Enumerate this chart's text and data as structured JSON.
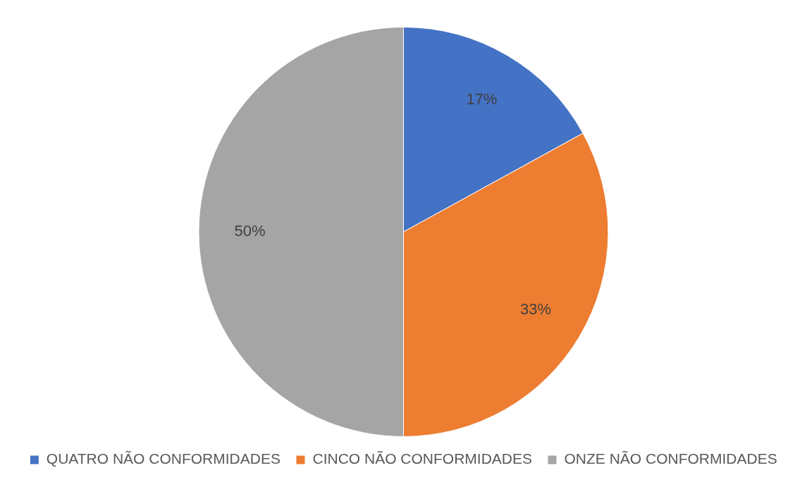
{
  "chart_data": {
    "type": "pie",
    "categories": [
      "QUATRO NÃO CONFORMIDADES",
      "CINCO NÃO CONFORMIDADES",
      "ONZE NÃO CONFORMIDADES"
    ],
    "values": [
      17,
      33,
      50
    ],
    "value_labels": [
      "17%",
      "33%",
      "50%"
    ],
    "colors": [
      "#4472c4",
      "#ed7d31",
      "#a5a5a5"
    ],
    "legend": "bottom"
  }
}
